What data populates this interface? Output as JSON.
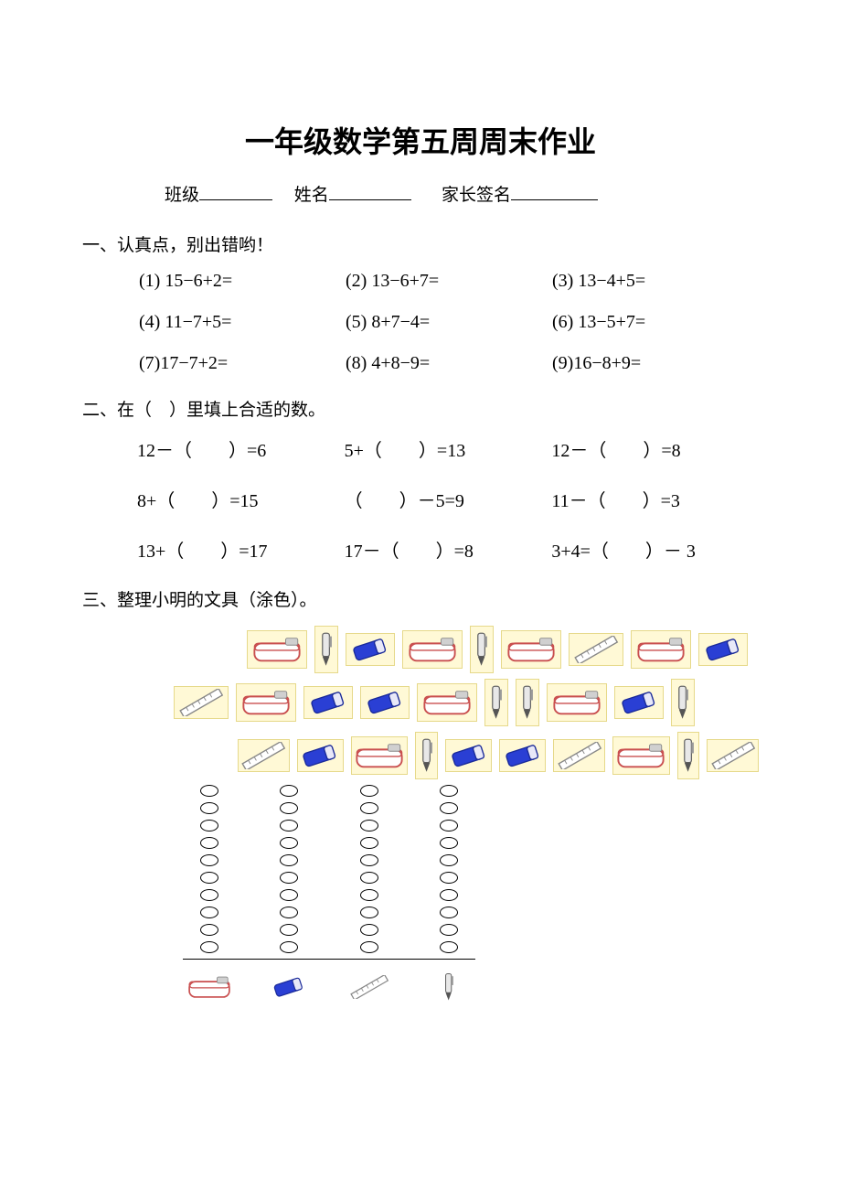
{
  "title": "一年级数学第五周周末作业",
  "info": {
    "class_label": "班级",
    "name_label": "姓名",
    "sign_label": "家长签名"
  },
  "section1": {
    "head": "一、认真点，别出错哟！",
    "items": [
      "(1) 15−6+2=",
      "(2) 13−6+7=",
      "(3) 13−4+5=",
      "(4) 11−7+5=",
      "(5) 8+7−4=",
      "(6) 13−5+7=",
      "(7)17−7+2=",
      "(8) 4+8−9=",
      "(9)16−8+9="
    ]
  },
  "section2": {
    "head": "二、在（　）里填上合适的数。",
    "items": [
      "12－（　　）=6",
      "5+（　　）=13",
      "12－（　　）=8",
      "8+（　　）=15",
      "（　　）－5=9",
      "11－（　　）=3",
      "13+（　　）=17",
      "17－（　　）=8",
      "3+4=（　　）－ 3"
    ]
  },
  "section3": {
    "head": "三、整理小明的文具（涂色）。"
  },
  "icons": {
    "pencil_box": {
      "body": "#ffffff",
      "line": "#c94f4f",
      "clip": "#888888"
    },
    "eraser": {
      "body": "#2a3fd4",
      "band": "#ffffff",
      "line": "#1a2a99"
    },
    "ruler": {
      "line": "#888888"
    },
    "pen": {
      "body": "#d8d8d8",
      "tip": "#555555",
      "line": "#666666"
    }
  },
  "scatter_rows": [
    [
      "box",
      "pen",
      "eraser",
      "box",
      "pen",
      "box",
      "ruler",
      "box",
      "eraser"
    ],
    [
      "ruler",
      "box",
      "eraser",
      "eraser",
      "box",
      "pen",
      "pen",
      "box",
      "eraser",
      "pen"
    ],
    [
      "ruler",
      "eraser",
      "box",
      "pen",
      "eraser",
      "eraser",
      "ruler",
      "box",
      "pen",
      "ruler"
    ]
  ],
  "tally": {
    "rows": 10,
    "cols": 4,
    "legend": [
      "box",
      "eraser",
      "ruler",
      "pen"
    ]
  }
}
